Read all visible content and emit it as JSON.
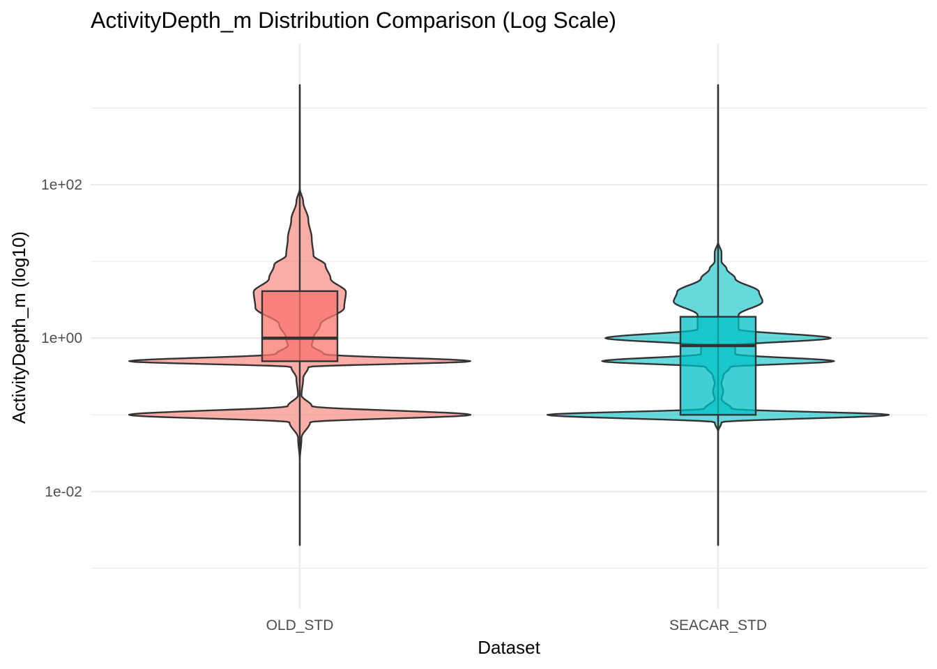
{
  "chart_data": {
    "type": "violin",
    "title": "ActivityDepth_m Distribution Comparison (Log Scale)",
    "xlabel": "Dataset",
    "ylabel": "ActivityDepth_m (log10)",
    "y_scale": "log10",
    "ylim": [
      0.0003,
      7000
    ],
    "y_ticks": [
      0.01,
      1,
      100
    ],
    "y_tick_labels": [
      "1e-02",
      "1e+00",
      "1e+02"
    ],
    "grid": true,
    "legend": "none",
    "categories": [
      "OLD_STD",
      "SEACAR_STD"
    ],
    "series": [
      {
        "name": "OLD_STD",
        "color": "#F8766D",
        "whisker_min": 0.002,
        "q1": 0.5,
        "median": 1.0,
        "q3": 4.1,
        "whisker_max": 2000,
        "density": [
          [
            0.002,
            0.0
          ],
          [
            0.025,
            0.0
          ],
          [
            0.05,
            0.01
          ],
          [
            0.08,
            0.06
          ],
          [
            0.1,
            1.0
          ],
          [
            0.13,
            0.07
          ],
          [
            0.18,
            0.01
          ],
          [
            0.3,
            0.02
          ],
          [
            0.42,
            0.05
          ],
          [
            0.5,
            1.0
          ],
          [
            0.62,
            0.14
          ],
          [
            0.8,
            0.07
          ],
          [
            1.0,
            0.08
          ],
          [
            1.5,
            0.12
          ],
          [
            2.5,
            0.26
          ],
          [
            4.0,
            0.27
          ],
          [
            6.0,
            0.18
          ],
          [
            9.0,
            0.15
          ],
          [
            12.0,
            0.08
          ],
          [
            20.0,
            0.07
          ],
          [
            35.0,
            0.05
          ],
          [
            60.0,
            0.02
          ],
          [
            90.0,
            0.0
          ],
          [
            2000,
            0.0
          ]
        ]
      },
      {
        "name": "SEACAR_STD",
        "color": "#00BFC4",
        "whisker_min": 0.002,
        "q1": 0.1,
        "median": 0.8,
        "q3": 1.9,
        "whisker_max": 2000,
        "density": [
          [
            0.002,
            0.0
          ],
          [
            0.06,
            0.0
          ],
          [
            0.08,
            0.02
          ],
          [
            0.1,
            1.0
          ],
          [
            0.12,
            0.08
          ],
          [
            0.16,
            0.02
          ],
          [
            0.2,
            0.03
          ],
          [
            0.26,
            0.02
          ],
          [
            0.32,
            0.03
          ],
          [
            0.42,
            0.07
          ],
          [
            0.5,
            0.68
          ],
          [
            0.62,
            0.1
          ],
          [
            0.8,
            0.1
          ],
          [
            1.0,
            0.66
          ],
          [
            1.3,
            0.12
          ],
          [
            2.0,
            0.12
          ],
          [
            3.0,
            0.26
          ],
          [
            4.0,
            0.24
          ],
          [
            6.0,
            0.1
          ],
          [
            8.0,
            0.05
          ],
          [
            10.0,
            0.02
          ],
          [
            13.0,
            0.02
          ],
          [
            18.0,
            0.0
          ],
          [
            2000,
            0.0
          ]
        ]
      }
    ]
  }
}
